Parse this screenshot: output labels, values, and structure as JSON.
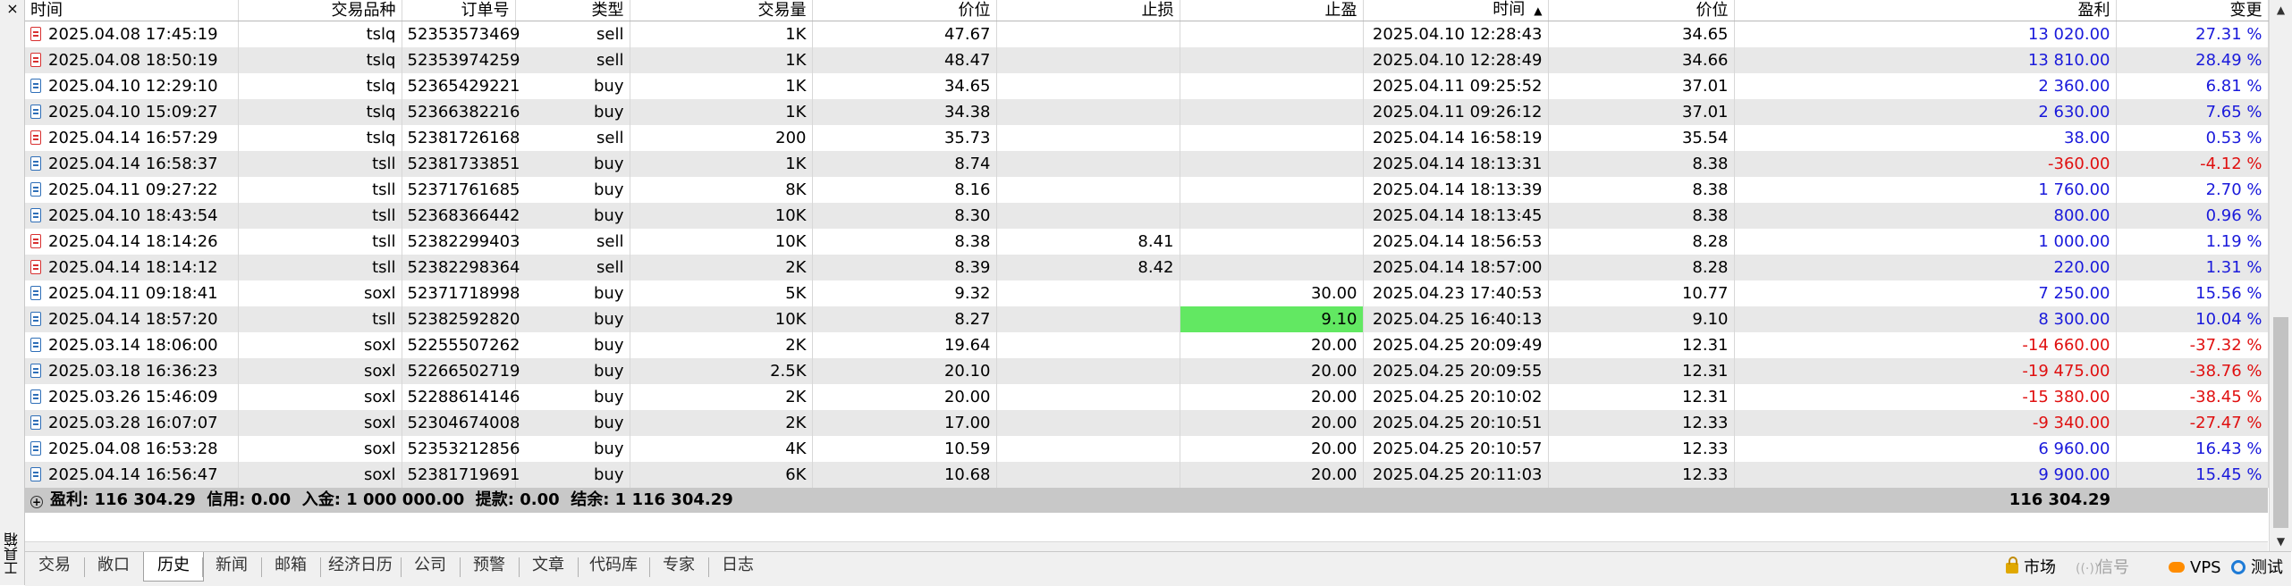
{
  "toolbox": {
    "label": "工具箱",
    "close": "×"
  },
  "columns": {
    "open_time": "时间",
    "symbol": "交易品种",
    "order": "订单号",
    "type": "类型",
    "volume": "交易量",
    "price": "价位",
    "sl": "止损",
    "tp": "止盈",
    "close_time": "时间",
    "close_price": "价位",
    "profit": "盈利",
    "change": "变更"
  },
  "rows": [
    {
      "open_time": "2025.04.08 17:45:19",
      "symbol": "tslq",
      "order": "52353573469",
      "type": "sell",
      "volume": "1K",
      "price": "47.67",
      "sl": "",
      "tp": "",
      "close_time": "2025.04.10 12:28:43",
      "close_price": "34.65",
      "profit": "13 020.00",
      "change": "27.31 %",
      "sign": "pos"
    },
    {
      "open_time": "2025.04.08 18:50:19",
      "symbol": "tslq",
      "order": "52353974259",
      "type": "sell",
      "volume": "1K",
      "price": "48.47",
      "sl": "",
      "tp": "",
      "close_time": "2025.04.10 12:28:49",
      "close_price": "34.66",
      "profit": "13 810.00",
      "change": "28.49 %",
      "sign": "pos"
    },
    {
      "open_time": "2025.04.10 12:29:10",
      "symbol": "tslq",
      "order": "52365429221",
      "type": "buy",
      "volume": "1K",
      "price": "34.65",
      "sl": "",
      "tp": "",
      "close_time": "2025.04.11 09:25:52",
      "close_price": "37.01",
      "profit": "2 360.00",
      "change": "6.81 %",
      "sign": "pos"
    },
    {
      "open_time": "2025.04.10 15:09:27",
      "symbol": "tslq",
      "order": "52366382216",
      "type": "buy",
      "volume": "1K",
      "price": "34.38",
      "sl": "",
      "tp": "",
      "close_time": "2025.04.11 09:26:12",
      "close_price": "37.01",
      "profit": "2 630.00",
      "change": "7.65 %",
      "sign": "pos"
    },
    {
      "open_time": "2025.04.14 16:57:29",
      "symbol": "tslq",
      "order": "52381726168",
      "type": "sell",
      "volume": "200",
      "price": "35.73",
      "sl": "",
      "tp": "",
      "close_time": "2025.04.14 16:58:19",
      "close_price": "35.54",
      "profit": "38.00",
      "change": "0.53 %",
      "sign": "pos"
    },
    {
      "open_time": "2025.04.14 16:58:37",
      "symbol": "tsll",
      "order": "52381733851",
      "type": "buy",
      "volume": "1K",
      "price": "8.74",
      "sl": "",
      "tp": "",
      "close_time": "2025.04.14 18:13:31",
      "close_price": "8.38",
      "profit": "-360.00",
      "change": "-4.12 %",
      "sign": "neg"
    },
    {
      "open_time": "2025.04.11 09:27:22",
      "symbol": "tsll",
      "order": "52371761685",
      "type": "buy",
      "volume": "8K",
      "price": "8.16",
      "sl": "",
      "tp": "",
      "close_time": "2025.04.14 18:13:39",
      "close_price": "8.38",
      "profit": "1 760.00",
      "change": "2.70 %",
      "sign": "pos"
    },
    {
      "open_time": "2025.04.10 18:43:54",
      "symbol": "tsll",
      "order": "52368366442",
      "type": "buy",
      "volume": "10K",
      "price": "8.30",
      "sl": "",
      "tp": "",
      "close_time": "2025.04.14 18:13:45",
      "close_price": "8.38",
      "profit": "800.00",
      "change": "0.96 %",
      "sign": "pos"
    },
    {
      "open_time": "2025.04.14 18:14:26",
      "symbol": "tsll",
      "order": "52382299403",
      "type": "sell",
      "volume": "10K",
      "price": "8.38",
      "sl": "8.41",
      "tp": "",
      "close_time": "2025.04.14 18:56:53",
      "close_price": "8.28",
      "profit": "1 000.00",
      "change": "1.19 %",
      "sign": "pos"
    },
    {
      "open_time": "2025.04.14 18:14:12",
      "symbol": "tsll",
      "order": "52382298364",
      "type": "sell",
      "volume": "2K",
      "price": "8.39",
      "sl": "8.42",
      "tp": "",
      "close_time": "2025.04.14 18:57:00",
      "close_price": "8.28",
      "profit": "220.00",
      "change": "1.31 %",
      "sign": "pos"
    },
    {
      "open_time": "2025.04.11 09:18:41",
      "symbol": "soxl",
      "order": "52371718998",
      "type": "buy",
      "volume": "5K",
      "price": "9.32",
      "sl": "",
      "tp": "30.00",
      "close_time": "2025.04.23 17:40:53",
      "close_price": "10.77",
      "profit": "7 250.00",
      "change": "15.56 %",
      "sign": "pos"
    },
    {
      "open_time": "2025.04.14 18:57:20",
      "symbol": "tsll",
      "order": "52382592820",
      "type": "buy",
      "volume": "10K",
      "price": "8.27",
      "sl": "",
      "tp": "9.10",
      "close_time": "2025.04.25 16:40:13",
      "close_price": "9.10",
      "profit": "8 300.00",
      "change": "10.04 %",
      "sign": "pos",
      "tp_highlight": true
    },
    {
      "open_time": "2025.03.14 18:06:00",
      "symbol": "soxl",
      "order": "52255507262",
      "type": "buy",
      "volume": "2K",
      "price": "19.64",
      "sl": "",
      "tp": "20.00",
      "close_time": "2025.04.25 20:09:49",
      "close_price": "12.31",
      "profit": "-14 660.00",
      "change": "-37.32 %",
      "sign": "neg"
    },
    {
      "open_time": "2025.03.18 16:36:23",
      "symbol": "soxl",
      "order": "52266502719",
      "type": "buy",
      "volume": "2.5K",
      "price": "20.10",
      "sl": "",
      "tp": "20.00",
      "close_time": "2025.04.25 20:09:55",
      "close_price": "12.31",
      "profit": "-19 475.00",
      "change": "-38.76 %",
      "sign": "neg"
    },
    {
      "open_time": "2025.03.26 15:46:09",
      "symbol": "soxl",
      "order": "52288614146",
      "type": "buy",
      "volume": "2K",
      "price": "20.00",
      "sl": "",
      "tp": "20.00",
      "close_time": "2025.04.25 20:10:02",
      "close_price": "12.31",
      "profit": "-15 380.00",
      "change": "-38.45 %",
      "sign": "neg"
    },
    {
      "open_time": "2025.03.28 16:07:07",
      "symbol": "soxl",
      "order": "52304674008",
      "type": "buy",
      "volume": "2K",
      "price": "17.00",
      "sl": "",
      "tp": "20.00",
      "close_time": "2025.04.25 20:10:51",
      "close_price": "12.33",
      "profit": "-9 340.00",
      "change": "-27.47 %",
      "sign": "neg"
    },
    {
      "open_time": "2025.04.08 16:53:28",
      "symbol": "soxl",
      "order": "52353212856",
      "type": "buy",
      "volume": "4K",
      "price": "10.59",
      "sl": "",
      "tp": "20.00",
      "close_time": "2025.04.25 20:10:57",
      "close_price": "12.33",
      "profit": "6 960.00",
      "change": "16.43 %",
      "sign": "pos"
    },
    {
      "open_time": "2025.04.14 16:56:47",
      "symbol": "soxl",
      "order": "52381719691",
      "type": "buy",
      "volume": "6K",
      "price": "10.68",
      "sl": "",
      "tp": "20.00",
      "close_time": "2025.04.25 20:11:03",
      "close_price": "12.33",
      "profit": "9 900.00",
      "change": "15.45 %",
      "sign": "pos"
    }
  ],
  "summary": {
    "text": "盈利: 116 304.29  信用: 0.00  入金: 1 000 000.00  提款: 0.00  结余: 1 116 304.29",
    "total_profit": "116 304.29"
  },
  "tabs": [
    {
      "label": "交易",
      "active": false
    },
    {
      "label": "敞口",
      "active": false
    },
    {
      "label": "历史",
      "active": true
    },
    {
      "label": "新闻",
      "active": false
    },
    {
      "label": "邮箱",
      "active": false
    },
    {
      "label": "经济日历",
      "active": false
    },
    {
      "label": "公司",
      "active": false
    },
    {
      "label": "预警",
      "active": false
    },
    {
      "label": "文章",
      "active": false
    },
    {
      "label": "代码库",
      "active": false
    },
    {
      "label": "专家",
      "active": false
    },
    {
      "label": "日志",
      "active": false
    }
  ],
  "right_buttons": {
    "market": "市场",
    "signals": "信号",
    "vps": "VPS",
    "tester": "测试"
  },
  "colors": {
    "positive": "#1a1adb",
    "negative": "#e01010",
    "tp_highlight": "#62e862",
    "row_alt": "#e8e8e8"
  },
  "icons": {
    "buy_row": "doc-icon-blue",
    "sell_row": "doc-icon-red",
    "sort": "sort-up-arrow"
  }
}
